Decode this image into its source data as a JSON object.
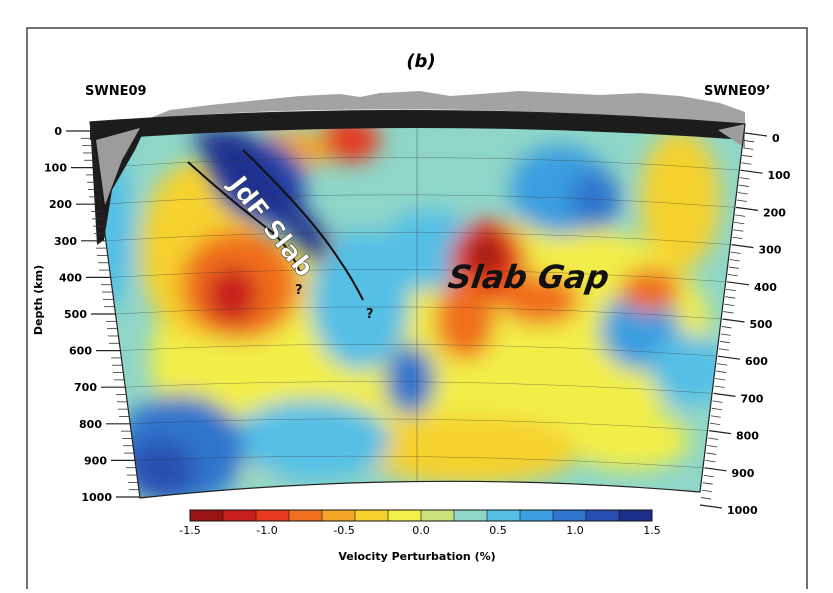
{
  "chart_data": {
    "type": "heatmap",
    "panel_label": "(b)",
    "left_profile_label": "SWNE09",
    "right_profile_label": "SWNE09’",
    "ylabel": "Depth (km)",
    "ylim": [
      0,
      1000
    ],
    "depth_ticks_left": [
      "0",
      "100",
      "200",
      "300",
      "400",
      "500",
      "600",
      "700",
      "800",
      "900",
      "1000"
    ],
    "depth_ticks_right": [
      "0",
      "100",
      "200",
      "300",
      "400",
      "500",
      "600",
      "700",
      "800",
      "900",
      "1000"
    ],
    "annotations": [
      "JdF Slab",
      "Slab Gap",
      "?",
      "?"
    ],
    "colorbar": {
      "label": "Velocity Perturbation (%)",
      "range": [
        -1.5,
        1.5
      ],
      "tick_labels": [
        "-1.5",
        "-1.0",
        "-0.5",
        "0.0",
        "0.5",
        "1.0",
        "1.5"
      ],
      "colors": [
        "#9a1414",
        "#c81e1e",
        "#e6391e",
        "#f06e1e",
        "#f6a626",
        "#f6d22e",
        "#f2ee4a",
        "#c9e37a",
        "#8fd6c8",
        "#55bfe6",
        "#3a9ee0",
        "#2f74cd",
        "#2a4fb3",
        "#1c2f8c"
      ]
    },
    "anomalies": [
      {
        "name": "jdf-slab",
        "sign": "fast",
        "depth_range": [
          0,
          400
        ]
      },
      {
        "name": "slow-anomaly-west",
        "sign": "slow",
        "depth_range": [
          300,
          600
        ]
      },
      {
        "name": "slow-anomaly-slab-gap",
        "sign": "slow",
        "depth_range": [
          200,
          500
        ]
      },
      {
        "name": "fast-anomaly-deep-west",
        "sign": "fast",
        "depth_range": [
          750,
          1000
        ]
      }
    ],
    "grid": true
  }
}
